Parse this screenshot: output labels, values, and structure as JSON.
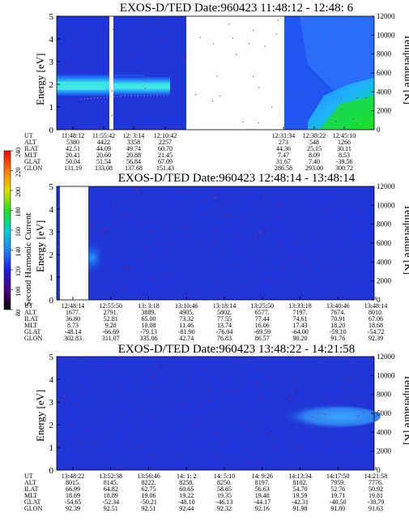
{
  "chart_data": [
    {
      "type": "heatmap",
      "title": "EXOS-D/TED Date:960423 11:48:12 - 12:48: 6",
      "ylabel": "Energy [eV]",
      "ylabel_right": "Temperature [K]",
      "ylim": [
        0,
        5
      ],
      "ylim_right": [
        0,
        12000
      ],
      "yticks": [
        "0",
        "1",
        "2",
        "3",
        "4",
        "5"
      ],
      "yticks_right": [
        "0",
        "2000",
        "4000",
        "6000",
        "8000",
        "10000",
        "12000"
      ],
      "data_gaps": [
        [
          0.453,
          0.473
        ],
        [
          0.625,
          0.925
        ]
      ],
      "rows": {
        "UT": [
          "11:48:12",
          "11:55:42",
          "12: 3:14",
          "12:10:42",
          "12:31:34",
          "12:38:22",
          "12:45:10"
        ],
        "ALT": [
          "5380",
          "4422",
          "3358",
          "2257",
          "273",
          "548",
          "1266"
        ],
        "ILAT": [
          "42.51",
          "44.09",
          "49.74",
          "60.70",
          "44.36",
          "25.15",
          "30.11"
        ],
        "MLT": [
          "20.41",
          "20.60",
          "20.88",
          "21.45",
          "7.47",
          "8.09",
          "8.53"
        ],
        "GLAT": [
          "50.04",
          "51.54",
          "56.84",
          "67.09",
          "31.67",
          "7.40",
          "-39.56"
        ],
        "GLON": [
          "131.19",
          "133.08",
          "137.68",
          "151.43",
          "286.58",
          "293.00",
          "300.72"
        ]
      }
    },
    {
      "type": "heatmap",
      "title": "EXOS-D/TED Date:960423 12:48:14 - 13:48:14",
      "ylabel": "Energy [eV]",
      "ylabel_right": "Temperature [K]",
      "ylim": [
        0,
        5
      ],
      "ylim_right": [
        0,
        12000
      ],
      "yticks": [
        "0",
        "1",
        "2",
        "3",
        "4",
        "5"
      ],
      "yticks_right": [
        "0",
        "2000",
        "4000",
        "6000",
        "8000",
        "10000",
        "12000"
      ],
      "data_gaps": [
        [
          0.01,
          0.12
        ]
      ],
      "rows": {
        "UT": [
          "12:48:14",
          "12:55:50",
          "13: 3:18",
          "13:10:46",
          "13:18:14",
          "13:25:50",
          "13:33:18",
          "13:40:46",
          "13:48:14"
        ],
        "ALT": [
          "1677.",
          "2791.",
          "3889.",
          "4905.",
          "5802.",
          "6577.",
          "7197.",
          "7674.",
          "8010."
        ],
        "ILAT": [
          "36.80",
          "52.81",
          "65.00",
          "73.32",
          "77.55",
          "77.44",
          "74.61",
          "70.91",
          "67.06"
        ],
        "MLT": [
          "8.73",
          "9.28",
          "10.08",
          "11.46",
          "13.74",
          "16.06",
          "17.43",
          "18.20",
          "18.68"
        ],
        "GLAT": [
          "-48.14",
          "-66.69",
          "-79.13",
          "-81.90",
          "-76.04",
          "-69.59",
          "-64.00",
          "-59.10",
          "-54.72"
        ],
        "GLON": [
          "302.83",
          "311.07",
          "335.06",
          "42.74",
          "76.83",
          "86.57",
          "90.20",
          "91.76",
          "92.39"
        ]
      }
    },
    {
      "type": "heatmap",
      "title": "EXOS-D/TED Date:960423 13:48:22 - 14:21:58",
      "ylabel": "Energy [eV]",
      "ylabel_right": "Temperature [K]",
      "ylim": [
        0,
        5
      ],
      "ylim_right": [
        0,
        12000
      ],
      "yticks": [
        "0",
        "1",
        "2",
        "3",
        "4",
        "5"
      ],
      "yticks_right": [
        "0",
        "2000",
        "4000",
        "6000",
        "8000",
        "10000",
        "12000"
      ],
      "data_gaps": [],
      "rows": {
        "UT": [
          "13:48:22",
          "13:52:38",
          "13:56:46",
          "14: 1: 2",
          "14: 5:10",
          "14: 9:26",
          "14:13:34",
          "14:17:50",
          "14:21:58"
        ],
        "ALT": [
          "8015.",
          "8145.",
          "8222.",
          "8258.",
          "8250.",
          "8197.",
          "8102.",
          "7959.",
          "7776."
        ],
        "ILAT": [
          "66.99",
          "64.82",
          "62.75",
          "60.65",
          "58.65",
          "56.63",
          "54.70",
          "52.76",
          "50.92"
        ],
        "MLT": [
          "18.69",
          "18.89",
          "19.06",
          "19.22",
          "19.35",
          "19.48",
          "19.59",
          "19.71",
          "19.81"
        ],
        "GLAT": [
          "-54.65",
          "-52.34",
          "-50.21",
          "-48.10",
          "-46.13",
          "-44.17",
          "-42.31",
          "-40.50",
          "-38.79"
        ],
        "GLON": [
          "92.39",
          "92.51",
          "92.51",
          "92.44",
          "92.32",
          "92.16",
          "91.98",
          "91.80",
          "91.63"
        ]
      }
    }
  ],
  "colorbar": {
    "label": "Second Harmonic Current",
    "ticks": [
      "80",
      "100",
      "120",
      "140",
      "160",
      "180",
      "200",
      "220",
      "240"
    ],
    "colors": [
      "#000000",
      "#4b0082",
      "#1c1ce6",
      "#1f7fff",
      "#00d2d2",
      "#1fe01f",
      "#dede00",
      "#ff7f00",
      "#ff0000"
    ]
  },
  "colors": {
    "background": "#1f35d8",
    "band_core": "#3fe6e6",
    "band_edge": "#1fa0ff",
    "speckle": "#c81e3c",
    "panel3_patch": "#2f90ff",
    "gap": "#ffffff"
  }
}
